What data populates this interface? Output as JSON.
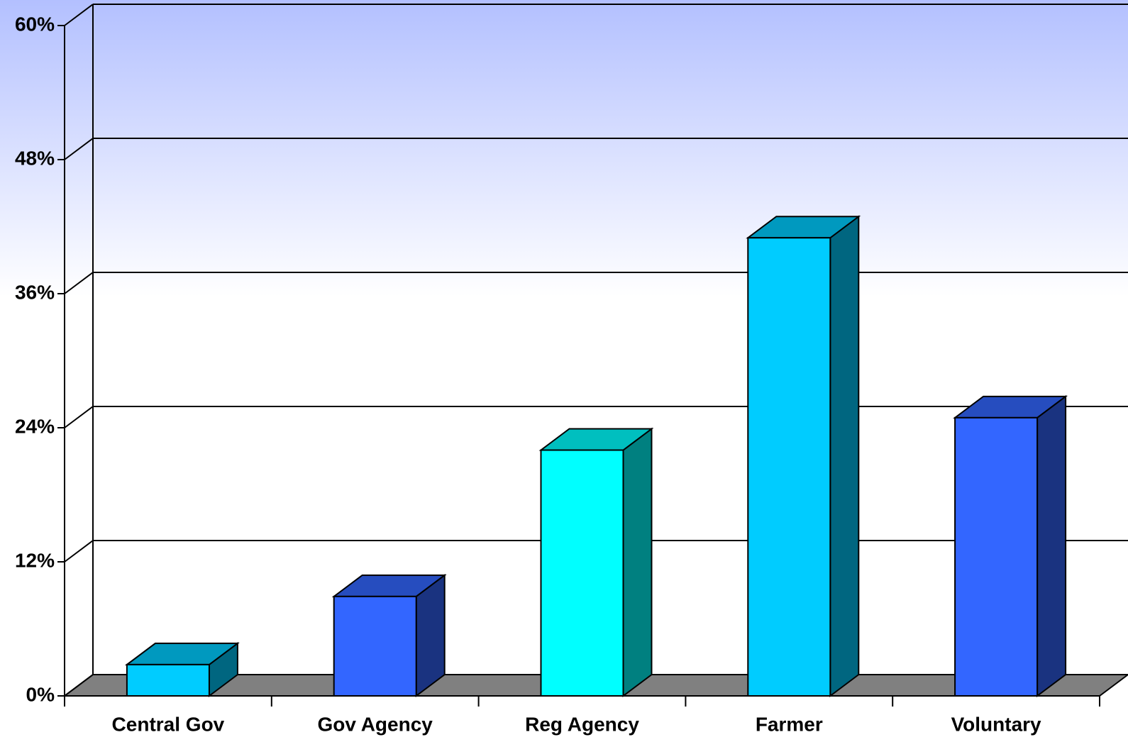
{
  "chart_data": {
    "type": "bar3d",
    "categories": [
      "Central Gov",
      "Gov Agency",
      "Reg Agency",
      "Farmer",
      "Voluntary"
    ],
    "values": [
      2.8,
      8.9,
      22,
      41,
      24.9
    ],
    "colors": [
      "#00ccff",
      "#3366ff",
      "#00ffff",
      "#00ccff",
      "#3366ff"
    ],
    "ylim": [
      0,
      60
    ],
    "yticks": [
      {
        "value": 0,
        "label": "0%"
      },
      {
        "value": 12,
        "label": "12%"
      },
      {
        "value": 24,
        "label": "24%"
      },
      {
        "value": 36,
        "label": "36%"
      },
      {
        "value": 48,
        "label": "48%"
      },
      {
        "value": 60,
        "label": "60%"
      }
    ],
    "grid": true
  }
}
